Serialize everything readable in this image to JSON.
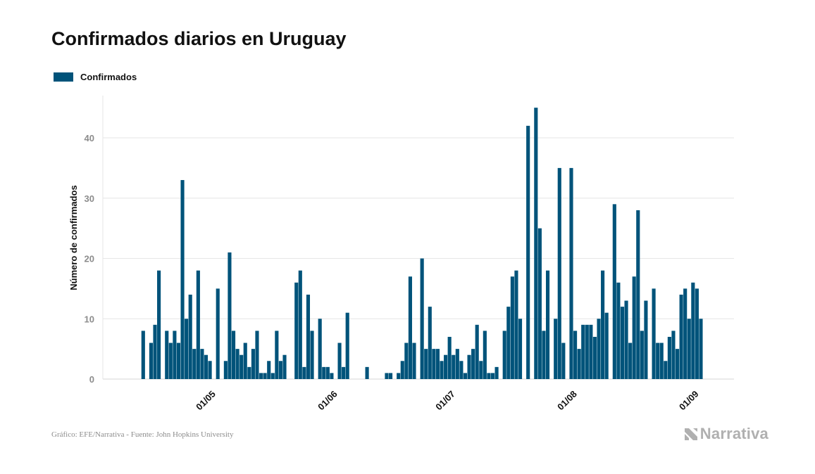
{
  "title": "Confirmados diarios en Uruguay",
  "source": "Gráfico: EFE/Narrativa - Fuente: John Hopkins University",
  "brand": "Narrativa",
  "brand_icon": "narrativa-logo-icon",
  "colors": {
    "bar": "#00537a",
    "grid": "#e6e6e6",
    "axis_text": "#8c8c8c"
  },
  "chart_data": {
    "type": "bar",
    "title": "Confirmados diarios en Uruguay",
    "xlabel": "",
    "ylabel": "Número de confirmados",
    "ylim": [
      0,
      47
    ],
    "yticks": [
      0,
      10,
      20,
      30,
      40
    ],
    "grid": true,
    "legend": "top-left",
    "start_date": "2020-04-12",
    "xticks": [
      {
        "label": "01/05",
        "date": "2020-05-01"
      },
      {
        "label": "01/06",
        "date": "2020-06-01"
      },
      {
        "label": "01/07",
        "date": "2020-07-01"
      },
      {
        "label": "01/08",
        "date": "2020-08-01"
      },
      {
        "label": "01/09",
        "date": "2020-09-01"
      }
    ],
    "series": [
      {
        "name": "Confirmados",
        "values": [
          0,
          0,
          0,
          8,
          0,
          6,
          9,
          18,
          0,
          8,
          6,
          8,
          6,
          33,
          10,
          14,
          5,
          18,
          5,
          4,
          3,
          0,
          15,
          0,
          3,
          21,
          8,
          5,
          4,
          6,
          2,
          5,
          8,
          1,
          1,
          3,
          1,
          8,
          3,
          4,
          0,
          0,
          16,
          18,
          2,
          14,
          8,
          0,
          10,
          2,
          2,
          1,
          0,
          6,
          2,
          11,
          0,
          0,
          0,
          0,
          2,
          0,
          0,
          0,
          0,
          1,
          1,
          0,
          1,
          3,
          6,
          17,
          6,
          0,
          20,
          5,
          12,
          5,
          5,
          3,
          4,
          7,
          4,
          5,
          3,
          1,
          4,
          5,
          9,
          3,
          8,
          1,
          1,
          2,
          0,
          8,
          12,
          17,
          18,
          10,
          0,
          42,
          0,
          45,
          25,
          8,
          18,
          0,
          10,
          35,
          6,
          0,
          35,
          8,
          5,
          9,
          9,
          9,
          7,
          10,
          18,
          11,
          0,
          29,
          16,
          12,
          13,
          6,
          17,
          28,
          8,
          13,
          0,
          15,
          6,
          6,
          3,
          7,
          8,
          5,
          14,
          15,
          10,
          16,
          15,
          10
        ]
      }
    ]
  }
}
